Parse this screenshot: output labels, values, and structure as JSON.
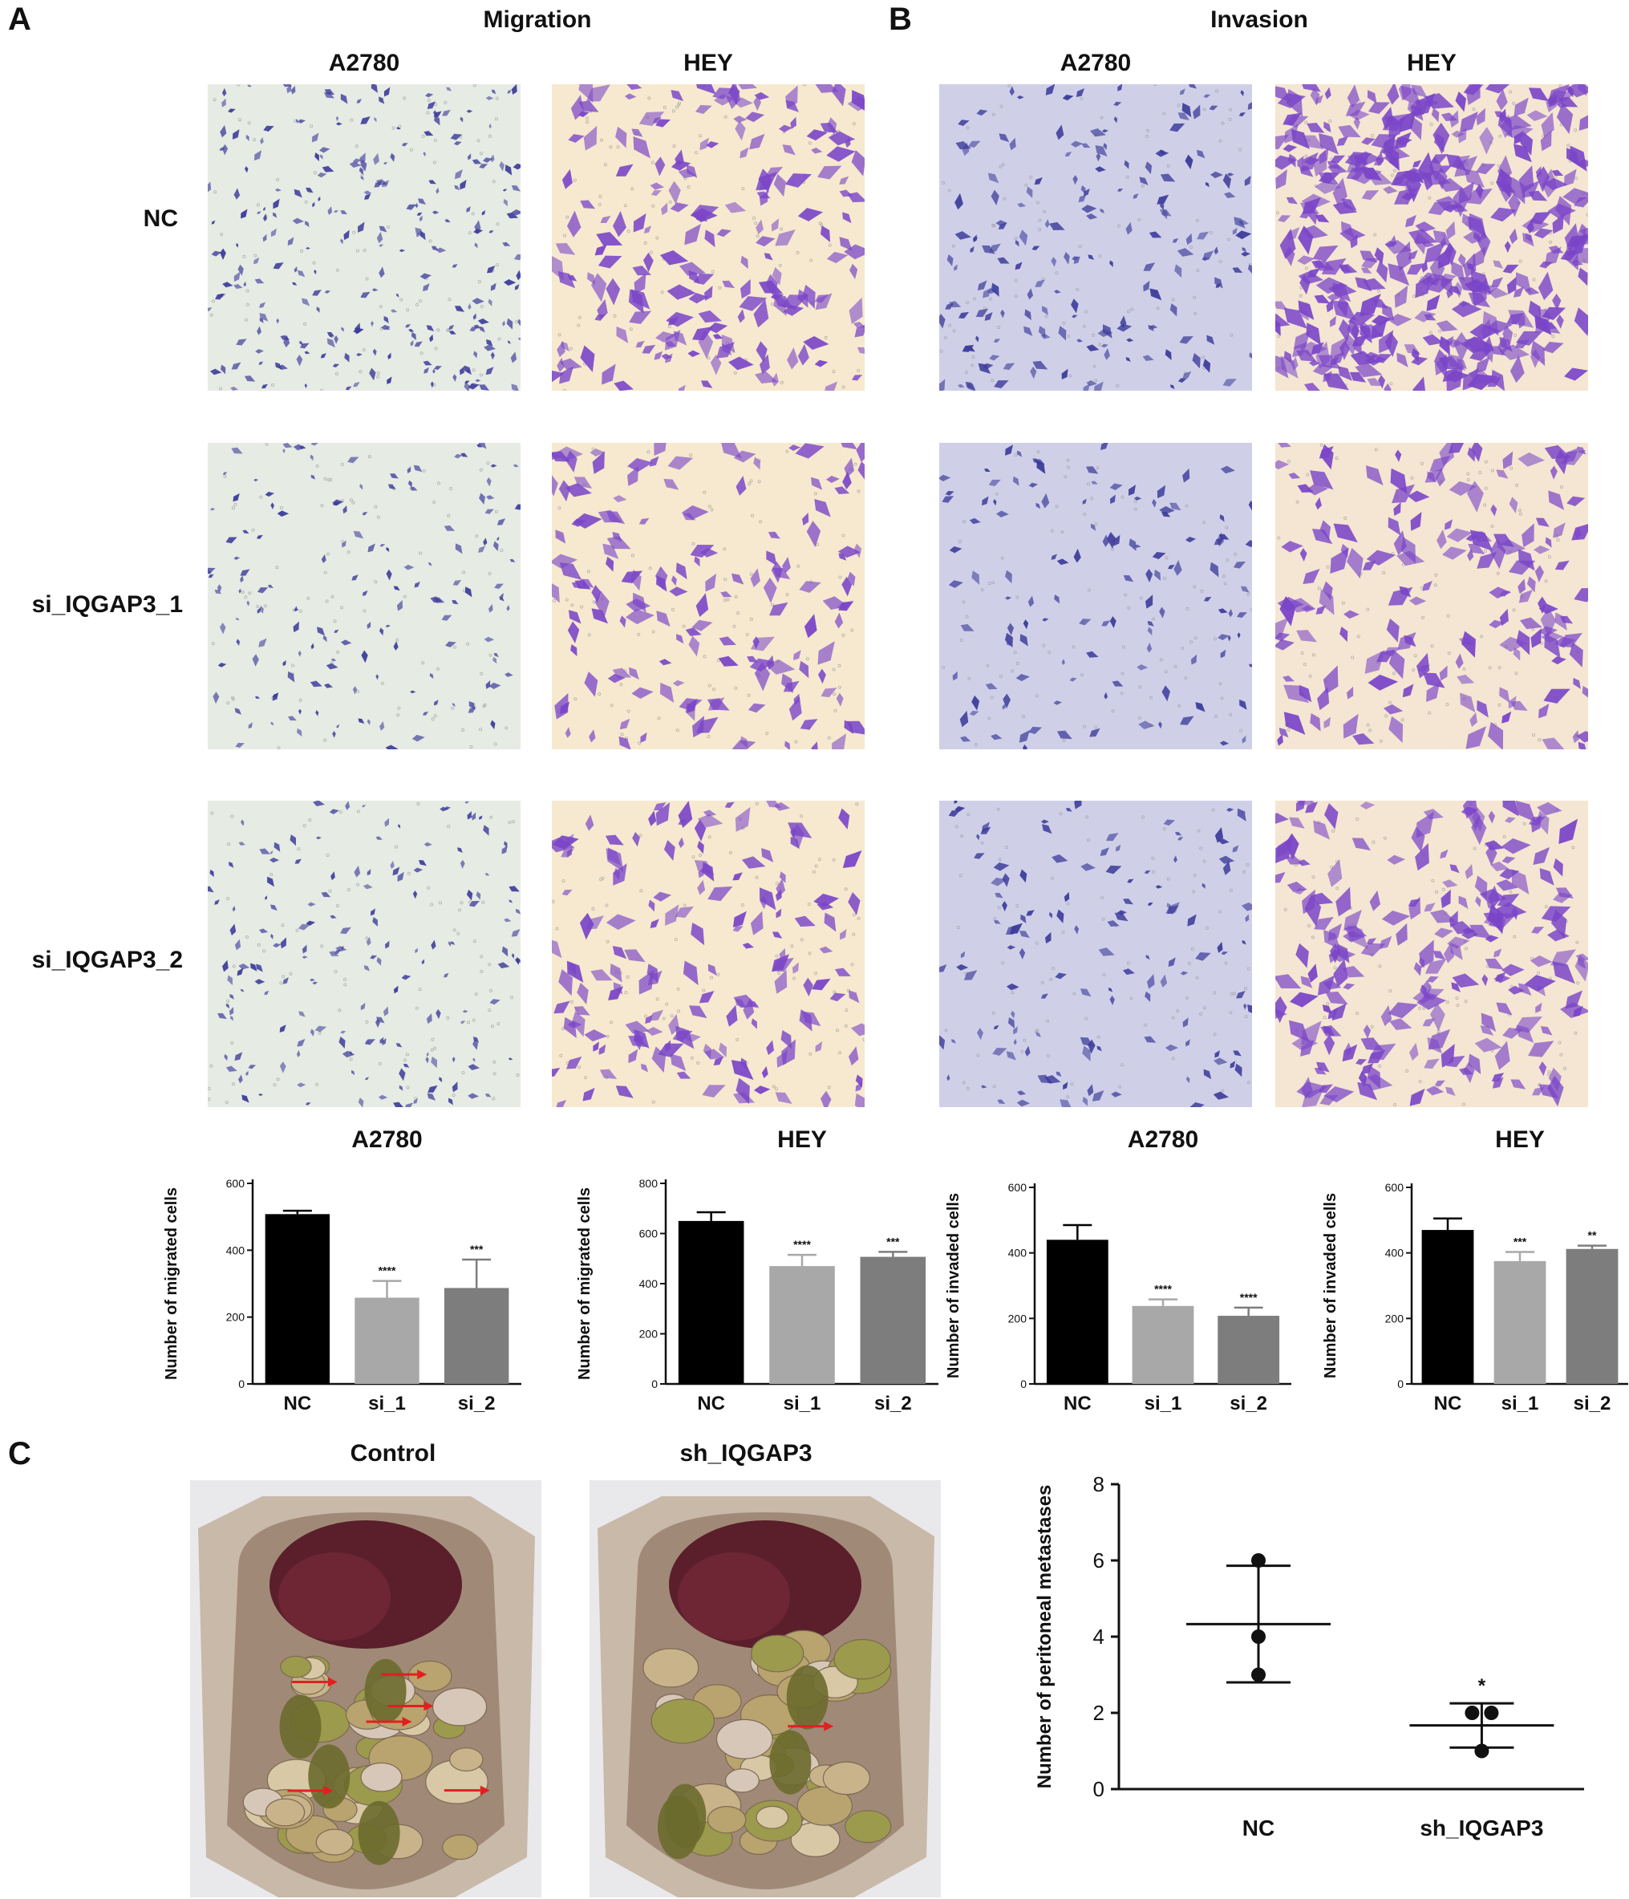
{
  "panels": {
    "A": {
      "letter": "A",
      "title": "Migration"
    },
    "B": {
      "letter": "B",
      "title": "Invasion"
    },
    "C": {
      "letter": "C"
    }
  },
  "micrographs": {
    "col_labels": [
      "A2780",
      "HEY",
      "A2780",
      "HEY"
    ],
    "row_labels": [
      "NC",
      "si_IQGAP3_1",
      "si_IQGAP3_2"
    ],
    "colors": {
      "a2780_background": "#e6ebe4",
      "a2780_cells": "#3c3a9a",
      "hey_background": "#f6e9cf",
      "hey_cells": "#7a45c8",
      "invasion_a2780_background": "#cfd0e8",
      "invasion_hey_background": "#f4e6d2"
    }
  },
  "chart_data": [
    {
      "type": "bar",
      "title": "A2780",
      "ylabel": "Number of migrated cells",
      "categories": [
        "NC",
        "si_1",
        "si_2"
      ],
      "values": [
        508,
        258,
        287
      ],
      "errors": [
        10,
        50,
        85
      ],
      "significance": [
        "",
        "****",
        "***"
      ],
      "ylim": [
        0,
        600
      ],
      "yticks": [
        0,
        200,
        400,
        600
      ],
      "colors": [
        "#000000",
        "#a8a8a8",
        "#7d7d7d"
      ]
    },
    {
      "type": "bar",
      "title": "HEY",
      "ylabel": "Number of migrated cells",
      "categories": [
        "NC",
        "si_1",
        "si_2"
      ],
      "values": [
        650,
        470,
        507
      ],
      "errors": [
        35,
        45,
        20
      ],
      "significance": [
        "",
        "****",
        "***"
      ],
      "ylim": [
        0,
        800
      ],
      "yticks": [
        0,
        200,
        400,
        600,
        800
      ],
      "colors": [
        "#000000",
        "#a8a8a8",
        "#7d7d7d"
      ]
    },
    {
      "type": "bar",
      "title": "A2780",
      "ylabel": "Number of invaded cells",
      "categories": [
        "NC",
        "si_1",
        "si_2"
      ],
      "values": [
        440,
        238,
        208
      ],
      "errors": [
        45,
        20,
        25
      ],
      "significance": [
        "",
        "****",
        "****"
      ],
      "ylim": [
        0,
        600
      ],
      "yticks": [
        0,
        200,
        400,
        600
      ],
      "colors": [
        "#000000",
        "#a8a8a8",
        "#7d7d7d"
      ]
    },
    {
      "type": "bar",
      "title": "HEY",
      "ylabel": "Number of invaded cells",
      "categories": [
        "NC",
        "si_1",
        "si_2"
      ],
      "values": [
        470,
        375,
        412
      ],
      "errors": [
        35,
        28,
        10
      ],
      "significance": [
        "",
        "***",
        "**"
      ],
      "ylim": [
        0,
        600
      ],
      "yticks": [
        0,
        200,
        400,
        600
      ],
      "colors": [
        "#000000",
        "#a8a8a8",
        "#7d7d7d"
      ]
    },
    {
      "type": "scatter",
      "ylabel": "Number of peritoneal metastases",
      "categories": [
        "NC",
        "sh_IQGAP3"
      ],
      "points": [
        [
          6,
          3,
          4
        ],
        [
          2,
          2,
          1
        ]
      ],
      "means": [
        4.33,
        1.67
      ],
      "sd": [
        1.53,
        0.58
      ],
      "significance": [
        "",
        "*"
      ],
      "ylim": [
        0,
        8
      ],
      "yticks": [
        0,
        2,
        4,
        6,
        8
      ]
    }
  ],
  "photos": {
    "labels": [
      "Control",
      "sh_IQGAP3"
    ],
    "arrow_color": "#e02020",
    "arrow_counts": [
      6,
      1
    ]
  }
}
